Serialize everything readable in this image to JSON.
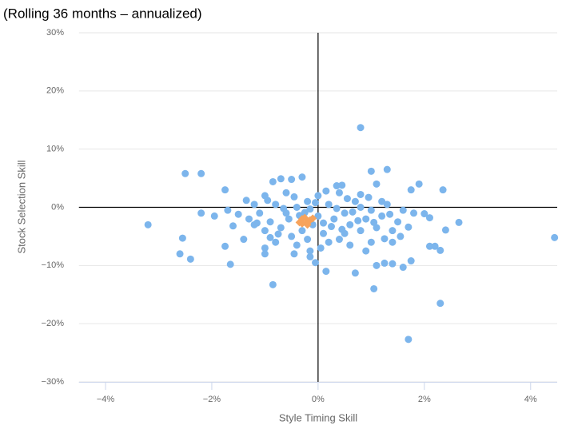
{
  "chart_data": {
    "type": "scatter",
    "title": "(Rolling 36 months – annualized)",
    "x_label": "Style Timing Skill",
    "y_label": "Stock Selection Skill",
    "xlim": [
      -4.5,
      4.5
    ],
    "ylim": [
      -30,
      30
    ],
    "xticks": [
      {
        "value": -4,
        "label": "−4%"
      },
      {
        "value": -2,
        "label": "−2%"
      },
      {
        "value": 0,
        "label": "0%"
      },
      {
        "value": 2,
        "label": "2%"
      },
      {
        "value": 4,
        "label": "4%"
      }
    ],
    "yticks": [
      {
        "value": -30,
        "label": "−30%"
      },
      {
        "value": -20,
        "label": "−20%"
      },
      {
        "value": -10,
        "label": "−10%"
      },
      {
        "value": 0,
        "label": "0%"
      },
      {
        "value": 10,
        "label": "10%"
      },
      {
        "value": 20,
        "label": "20%"
      },
      {
        "value": 30,
        "label": "30%"
      }
    ],
    "grid": true,
    "series": [
      {
        "color": "#7cb5ec",
        "marker": "circle",
        "x": [
          -3.2,
          -2.5,
          -2.2,
          -2.55,
          -2.6,
          -2.4,
          -2.2,
          -1.75,
          -1.65,
          -1.75,
          -0.85,
          0.8,
          1.0,
          1.3,
          1.9,
          2.35,
          4.45,
          2.3,
          1.7,
          1.05,
          0.15,
          0.7,
          2.65,
          2.4,
          2.3,
          2.1,
          2.2,
          1.75,
          1.6,
          1.4,
          1.25,
          1.1,
          -0.05,
          -0.15,
          -0.45,
          -1.0,
          -1.0,
          -0.3,
          -0.5,
          -0.85,
          -0.7,
          0.35,
          0.45,
          0.8,
          1.1,
          1.75,
          2.0,
          2.1,
          -1.95,
          -1.7,
          -1.3,
          -1.2,
          -1.1,
          -1.0,
          -0.9,
          -0.8,
          -0.7,
          -0.6,
          -0.5,
          -0.4,
          -0.3,
          -0.2,
          -0.1,
          0,
          0.1,
          0.2,
          0.3,
          0.4,
          0.5,
          0.6,
          0.7,
          0.8,
          0.9,
          1.0,
          1.1,
          1.2,
          1.3,
          1.4,
          1.5,
          1.6,
          -1.4,
          -1.2,
          -1.0,
          -0.8,
          -0.6,
          -0.4,
          -0.2,
          0,
          0.2,
          0.4,
          0.6,
          0.8,
          1.0,
          1.2,
          1.4,
          -1.5,
          -0.95,
          -0.55,
          -0.15,
          0.25,
          0.65,
          1.05,
          0.45,
          -0.35,
          -0.75,
          0.05,
          0.9,
          -1.6,
          1.7,
          1.8,
          0.55,
          -0.45,
          0.15,
          -0.05,
          0.35,
          -0.65,
          0.75,
          -1.15,
          1.35,
          0.1,
          -0.25,
          0.5,
          -0.9,
          1.55,
          -1.35,
          0.95,
          1.25,
          -0.15
        ],
        "values": [
          -3,
          5.8,
          5.8,
          -5.3,
          -8,
          -8.9,
          -1,
          3,
          -9.8,
          -6.7,
          -13.3,
          13.7,
          6.2,
          6.5,
          4,
          3,
          -5.2,
          -16.5,
          -22.7,
          -14,
          -11,
          -11.3,
          -2.6,
          -3.9,
          -7.4,
          -6.7,
          -6.7,
          -9.2,
          -10.3,
          -9.7,
          -9.6,
          -10,
          -9.5,
          -8.5,
          -8,
          -8,
          -7,
          5.2,
          4.8,
          4.4,
          4.9,
          3.7,
          3.8,
          2.2,
          4,
          3,
          -1.1,
          -1.8,
          -1.5,
          -0.5,
          -2,
          -3,
          -1,
          -4,
          -2.5,
          0.5,
          -3.5,
          -1,
          -5,
          0,
          -4,
          1,
          -3,
          -1.5,
          -4.5,
          0.5,
          -2,
          -5.5,
          -1,
          -3,
          1,
          -4,
          -2,
          -0.5,
          -3.5,
          -1.5,
          0.5,
          -4,
          -2.5,
          -0.5,
          -5.5,
          0.5,
          2,
          -6,
          2.5,
          -6.5,
          -5.5,
          2,
          -6,
          2.5,
          -6.5,
          0,
          -6,
          1,
          -6,
          -1.2,
          1.2,
          -2,
          -0.3,
          -3.3,
          -0.8,
          -2.6,
          -3.8,
          -1.4,
          -4.6,
          -7,
          -7.5,
          -3.2,
          -3.4,
          -1,
          1.5,
          1.8,
          2.8,
          0.8,
          -0.2,
          -0.2,
          -2.3,
          -2.7,
          -1.2,
          -2.7,
          -0.9,
          -4.5,
          -5.2,
          -5,
          1.2,
          1.7,
          -5.4,
          -7.5
        ]
      },
      {
        "color": "#f7a35c",
        "marker": "diamond",
        "x": [
          -0.3,
          -0.2,
          -0.25,
          -0.15,
          -0.35,
          -0.2,
          -0.3,
          -0.1
        ],
        "values": [
          -2,
          -2.5,
          -1.8,
          -2.2,
          -2.6,
          -3,
          -2.8,
          -1.9
        ]
      }
    ]
  }
}
